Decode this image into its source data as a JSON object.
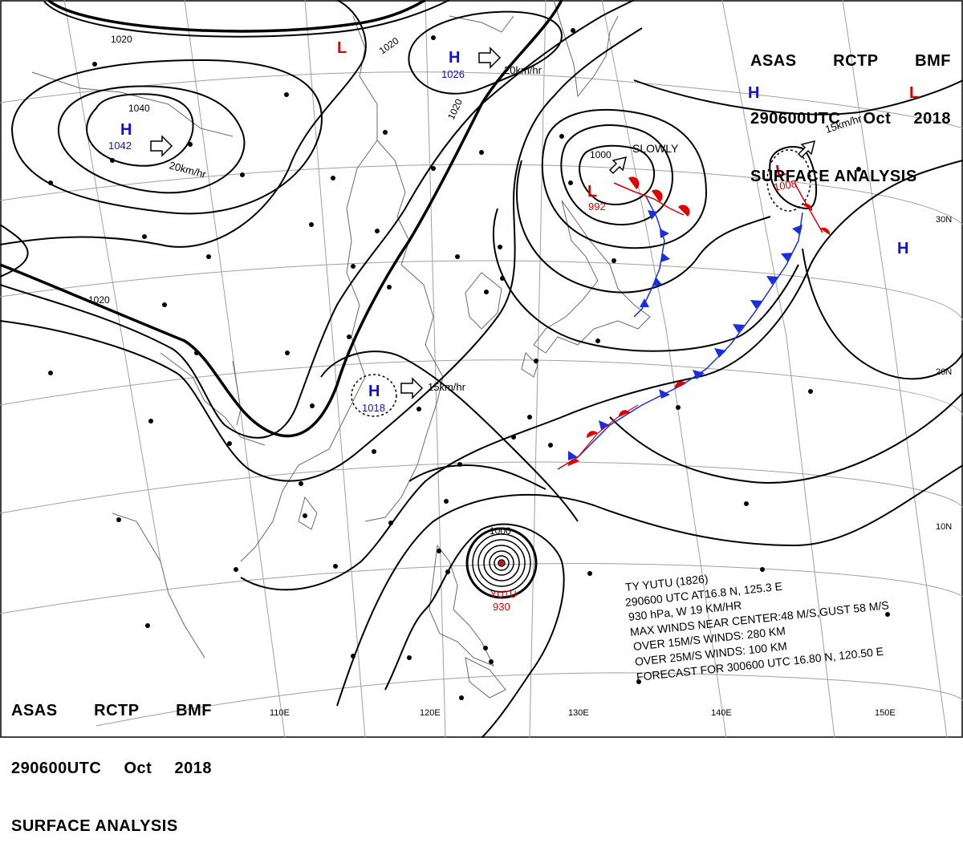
{
  "header": {
    "agency": "ASAS",
    "center": "RCTP",
    "source": "BMF",
    "datetime": "290600UTC",
    "month": "Oct",
    "year": "2018",
    "product": "SURFACE ANALYSIS"
  },
  "longitudes": [
    "110E",
    "120E",
    "130E",
    "140E",
    "150E"
  ],
  "latitudes": [
    "30N",
    "20N",
    "10N"
  ],
  "isobar_labels": [
    "1040",
    "1020",
    "1020",
    "1020",
    "1020",
    "1000",
    "1000"
  ],
  "highs": [
    {
      "symbol": "H",
      "pressure": "1042",
      "motion": "20km/hr"
    },
    {
      "symbol": "H",
      "pressure": "1026",
      "motion": "20km/hr"
    },
    {
      "symbol": "H",
      "pressure": "1018",
      "motion": "15km/hr"
    },
    {
      "symbol": "H",
      "pressure": ""
    },
    {
      "symbol": "H",
      "pressure": ""
    }
  ],
  "lows": [
    {
      "symbol": "L",
      "pressure": "992",
      "motion": "SLOWLY"
    },
    {
      "symbol": "L",
      "pressure": "1008",
      "motion": "15km/hr"
    },
    {
      "symbol": "L",
      "pressure": ""
    },
    {
      "symbol": "L",
      "pressure": ""
    }
  ],
  "typhoon": {
    "name": "YUTU",
    "pressure": "930",
    "lines": [
      "TY YUTU (1826)",
      "290600 UTC  AT16.8 N, 125.3 E",
      "930 hPa, W  19 KM/HR",
      "MAX WINDS NEAR CENTER:48 M/S,GUST 58 M/S",
      "OVER 15M/S WINDS: 280 KM",
      "OVER 25M/S WINDS: 100 KM",
      "FORECAST FOR 300600 UTC 16.80 N, 120.50 E"
    ]
  },
  "colors": {
    "high": "#1010d0",
    "low": "#e00000",
    "cold_front": "#1a2ee0",
    "warm_front": "#e00000",
    "isobar": "#000000",
    "grid": "#9a9a9a",
    "coast": "#6a6a6a"
  }
}
